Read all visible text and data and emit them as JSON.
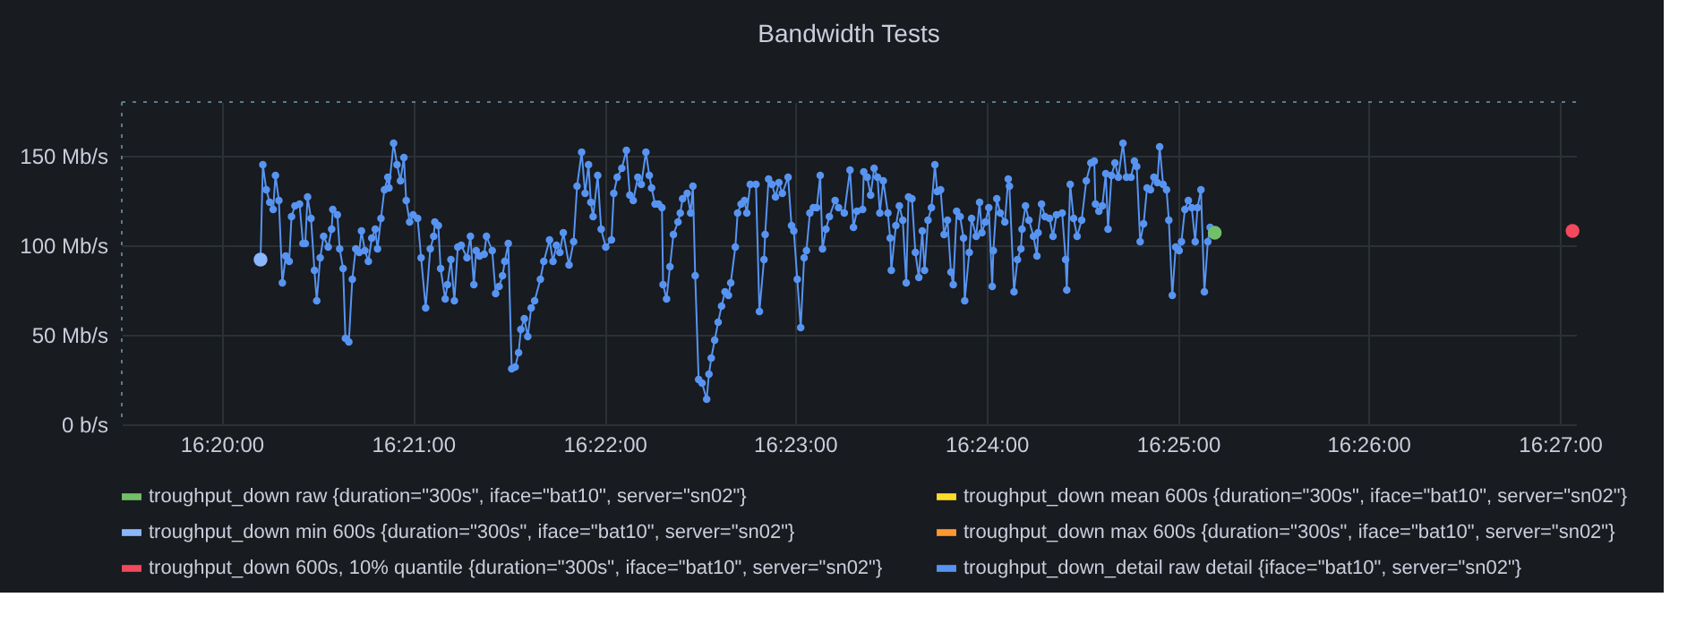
{
  "chart_data": {
    "type": "line",
    "title": "Bandwidth Tests",
    "xlim": [
      16.3246,
      16.4514
    ],
    "ylim": [
      0,
      180
    ],
    "xticks": [
      {
        "value": 16.3333,
        "label": "16:20:00"
      },
      {
        "value": 16.35,
        "label": "16:21:00"
      },
      {
        "value": 16.3667,
        "label": "16:22:00"
      },
      {
        "value": 16.3833,
        "label": "16:23:00"
      },
      {
        "value": 16.4,
        "label": "16:24:00"
      },
      {
        "value": 16.4167,
        "label": "16:25:00"
      },
      {
        "value": 16.4333,
        "label": "16:26:00"
      },
      {
        "value": 16.45,
        "label": "16:27:00"
      }
    ],
    "yticks": [
      {
        "value": 0,
        "label": "0 b/s"
      },
      {
        "value": 50,
        "label": "50 Mb/s"
      },
      {
        "value": 100,
        "label": "100 Mb/s"
      },
      {
        "value": 150,
        "label": "150 Mb/s"
      }
    ],
    "grid": true,
    "legend": "bottom",
    "marker": "circle",
    "line_style": "solid",
    "ref_lines": [
      {
        "axis": "y",
        "value": 180,
        "label": null,
        "color": "#5a7d8c",
        "line_style": "dotted"
      },
      {
        "axis": "x",
        "value": 16.3246,
        "label": null,
        "color": "#5a7d8c",
        "line_style": "dotted"
      }
    ],
    "series": [
      {
        "name": "troughput_down raw {duration=\"300s\", iface=\"bat10\", server=\"sn02\"}",
        "type": "scatter",
        "color": "#73bf69",
        "x": [
          16.4199
        ],
        "values": [
          107
        ]
      },
      {
        "name": "troughput_down mean 600s {duration=\"300s\", iface=\"bat10\", server=\"sn02\"}",
        "type": "scatter",
        "color": "#fade2a"
      },
      {
        "name": "troughput_down min 600s {duration=\"300s\", iface=\"bat10\", server=\"sn02\"}",
        "type": "scatter",
        "color": "#8ab8ff",
        "x": [
          16.3367
        ],
        "values": [
          92
        ]
      },
      {
        "name": "troughput_down max 600s {duration=\"300s\", iface=\"bat10\", server=\"sn02\"}",
        "type": "scatter",
        "color": "#ff9830"
      },
      {
        "name": "troughput_down 600s, 10% quantile {duration=\"300s\", iface=\"bat10\", server=\"sn02\"}",
        "type": "scatter",
        "color": "#f2495c",
        "x": [
          16.4511
        ],
        "values": [
          108
        ]
      },
      {
        "name": "troughput_down_detail raw detail {iface=\"bat10\", server=\"sn02\"}",
        "color": "#5794f2",
        "x": [
          16.3367,
          16.3369,
          16.3372,
          16.3375,
          16.3378,
          16.338,
          16.3383,
          16.3386,
          16.3389,
          16.3392,
          16.3394,
          16.3397,
          16.3401,
          16.3404,
          16.3406,
          16.3408,
          16.3411,
          16.3414,
          16.3416,
          16.3419,
          16.3422,
          16.3426,
          16.3429,
          16.343,
          16.3434,
          16.3436,
          16.3439,
          16.3441,
          16.3444,
          16.3447,
          16.345,
          16.3453,
          16.3455,
          16.3458,
          16.3461,
          16.3464,
          16.3467,
          16.3469,
          16.3472,
          16.3475,
          16.3478,
          16.3479,
          16.3483,
          16.3486,
          16.3489,
          16.3492,
          16.3494,
          16.3497,
          16.35,
          16.3504,
          16.3507,
          16.3511,
          16.3515,
          16.3518,
          16.3519,
          16.3522,
          16.3524,
          16.3528,
          16.353,
          16.3533,
          16.3536,
          16.3539,
          16.3542,
          16.3547,
          16.355,
          16.3553,
          16.3555,
          16.3558,
          16.3562,
          16.3564,
          16.3569,
          16.3572,
          16.3575,
          16.3578,
          16.358,
          16.3583,
          16.3586,
          16.3589,
          16.3592,
          16.3594,
          16.3597,
          16.36,
          16.3603,
          16.3606,
          16.3611,
          16.3614,
          16.3619,
          16.3622,
          16.3625,
          16.3628,
          16.3631,
          16.3636,
          16.364,
          16.3643,
          16.3647,
          16.365,
          16.3653,
          16.3655,
          16.3657,
          16.3661,
          16.3664,
          16.3668,
          16.3673,
          16.3675,
          16.3678,
          16.3682,
          16.3686,
          16.3689,
          16.3692,
          16.3696,
          16.3699,
          16.3703,
          16.3706,
          16.3708,
          16.3711,
          16.3714,
          16.3717,
          16.3718,
          16.3721,
          16.3724,
          16.3727,
          16.3731,
          16.3733,
          16.3735,
          16.3739,
          16.3742,
          16.3744,
          16.3746,
          16.3749,
          16.3752,
          16.3756,
          16.3758,
          16.376,
          16.3763,
          16.3766,
          16.3769,
          16.3772,
          16.3775,
          16.3777,
          16.3781,
          16.3783,
          16.3786,
          16.3789,
          16.3791,
          16.3794,
          16.3799,
          16.3802,
          16.3806,
          16.3807,
          16.381,
          16.3813,
          16.3816,
          16.3819,
          16.3822,
          16.3827,
          16.383,
          16.3832,
          16.3835,
          16.3838,
          16.3841,
          16.3843,
          16.3846,
          16.3849,
          16.3852,
          16.3855,
          16.3857,
          16.386,
          16.3863,
          16.3868,
          16.3871,
          16.3876,
          16.3881,
          16.3884,
          16.3887,
          16.3892,
          16.3893,
          16.3896,
          16.3899,
          16.3902,
          16.3905,
          16.3907,
          16.391,
          16.3914,
          16.3916,
          16.3917,
          16.3921,
          16.3924,
          16.3927,
          16.393,
          16.3932,
          16.3935,
          16.3938,
          16.3941,
          16.3944,
          16.3946,
          16.3949,
          16.3952,
          16.3955,
          16.3957,
          16.396,
          16.3963,
          16.3966,
          16.3969,
          16.3971,
          16.3974,
          16.3977,
          16.398,
          16.3981,
          16.3985,
          16.3987,
          16.3991,
          16.3994,
          16.3996,
          16.3999,
          16.4002,
          16.4005,
          16.4006,
          16.4009,
          16.4012,
          16.4016,
          16.4019,
          16.402,
          16.4024,
          16.4027,
          16.403,
          16.4031,
          16.4034,
          16.4037,
          16.4041,
          16.4044,
          16.4045,
          16.4048,
          16.4051,
          16.4055,
          16.4058,
          16.4061,
          16.4066,
          16.4069,
          16.407,
          16.4073,
          16.4076,
          16.4079,
          16.4083,
          16.4087,
          16.4091,
          16.4094,
          16.4095,
          16.4098,
          16.4101,
          16.4104,
          16.4106,
          16.4109,
          16.4112,
          16.4115,
          16.4119,
          16.4122,
          16.4126,
          16.4129,
          16.4131,
          16.4134,
          16.4137,
          16.414,
          16.4143,
          16.4146,
          16.4149,
          16.4151,
          16.4154,
          16.4157,
          16.4159,
          16.4162,
          16.4165,
          16.4168,
          16.417,
          16.4173,
          16.4176,
          16.4179,
          16.4182,
          16.4184,
          16.4187,
          16.419,
          16.4193,
          16.4195
        ],
        "values": [
          92,
          145,
          131,
          124,
          120,
          139,
          125,
          79,
          94,
          91,
          116,
          122,
          123,
          101,
          101,
          127,
          115,
          86,
          69,
          93,
          105,
          99,
          109,
          120,
          117,
          98,
          87,
          48,
          46,
          81,
          98,
          96,
          108,
          97,
          91,
          104,
          109,
          98,
          115,
          131,
          138,
          132,
          157,
          145,
          136,
          149,
          125,
          113,
          117,
          115,
          93,
          65,
          98,
          105,
          113,
          111,
          87,
          70,
          78,
          92,
          69,
          99,
          100,
          93,
          105,
          78,
          97,
          94,
          95,
          105,
          97,
          73,
          77,
          83,
          91,
          101,
          31,
          32,
          40,
          53,
          59,
          49,
          65,
          69,
          81,
          91,
          103,
          91,
          100,
          96,
          107,
          89,
          102,
          133,
          152,
          129,
          145,
          124,
          116,
          139,
          109,
          99,
          103,
          129,
          138,
          143,
          153,
          128,
          125,
          138,
          134,
          152,
          139,
          132,
          123,
          123,
          121,
          78,
          70,
          88,
          106,
          113,
          118,
          126,
          129,
          118,
          133,
          83,
          25,
          23,
          14,
          28,
          37,
          47,
          57,
          66,
          74,
          72,
          79,
          99,
          118,
          123,
          125,
          118,
          134,
          134,
          63,
          92,
          106,
          137,
          134,
          127,
          135,
          129,
          138,
          111,
          108,
          81,
          54,
          93,
          97,
          118,
          121,
          121,
          139,
          98,
          109,
          116,
          125,
          121,
          118,
          142,
          110,
          119,
          120,
          141,
          138,
          128,
          143,
          138,
          118,
          136,
          118,
          104,
          86,
          111,
          122,
          114,
          79,
          127,
          126,
          96,
          82,
          108,
          86,
          114,
          121,
          145,
          130,
          131,
          106,
          114,
          85,
          78,
          119,
          116,
          104,
          69,
          96,
          115,
          105,
          124,
          107,
          113,
          121,
          77,
          97,
          126,
          118,
          113,
          137,
          133,
          74,
          92,
          98,
          109,
          122,
          114,
          105,
          94,
          107,
          123,
          116,
          115,
          105,
          117,
          118,
          92,
          75,
          134,
          115,
          105,
          114,
          136,
          146,
          147,
          123,
          119,
          122,
          140,
          109,
          139,
          146,
          138,
          157,
          138,
          138,
          147,
          144,
          102,
          112,
          132,
          131,
          138,
          135,
          155,
          134,
          131,
          114,
          72,
          99,
          97,
          102,
          120,
          125,
          121,
          102,
          121,
          131,
          74,
          102,
          110
        ]
      }
    ]
  }
}
